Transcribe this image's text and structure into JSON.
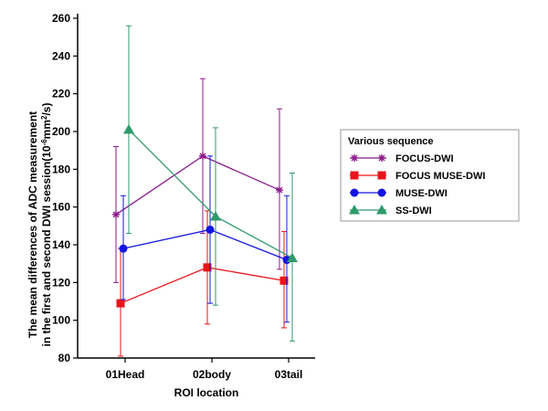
{
  "chart_data": {
    "type": "line",
    "categories": [
      "01Head",
      "02body",
      "03tail"
    ],
    "xlabel": "ROI location",
    "ylabel_line1": "The mean differences of ADC measurement",
    "ylabel_line2": "in the first and second DWI session(10",
    "ylabel_sup1": "-6",
    "ylabel_mid": "mm",
    "ylabel_sup2": "2",
    "ylabel_end": "/s)",
    "ylim": [
      80,
      260
    ],
    "yticks": [
      80,
      100,
      120,
      140,
      160,
      180,
      200,
      220,
      240,
      260
    ],
    "grid": false,
    "legend_title": "Various sequence",
    "legend_position": "right",
    "series": [
      {
        "name": "FOCUS-DWI",
        "color": "#8b1a8b",
        "marker": "star",
        "values": [
          156,
          187,
          169
        ],
        "err_low": [
          120,
          146,
          127
        ],
        "err_high": [
          192,
          228,
          212
        ]
      },
      {
        "name": "FOCUS MUSE-DWI",
        "color": "#e8141a",
        "marker": "square",
        "values": [
          109,
          128,
          121
        ],
        "err_low": [
          81,
          98,
          96
        ],
        "err_high": [
          138,
          158,
          147
        ]
      },
      {
        "name": "MUSE-DWI",
        "color": "#1414e0",
        "marker": "circle",
        "values": [
          138,
          148,
          132
        ],
        "err_low": [
          111,
          109,
          99
        ],
        "err_high": [
          166,
          187,
          166
        ]
      },
      {
        "name": "SS-DWI",
        "color": "#2e9a6b",
        "marker": "triangle",
        "values": [
          201,
          155,
          133
        ],
        "err_low": [
          146,
          108,
          89
        ],
        "err_high": [
          256,
          202,
          178
        ]
      }
    ]
  }
}
